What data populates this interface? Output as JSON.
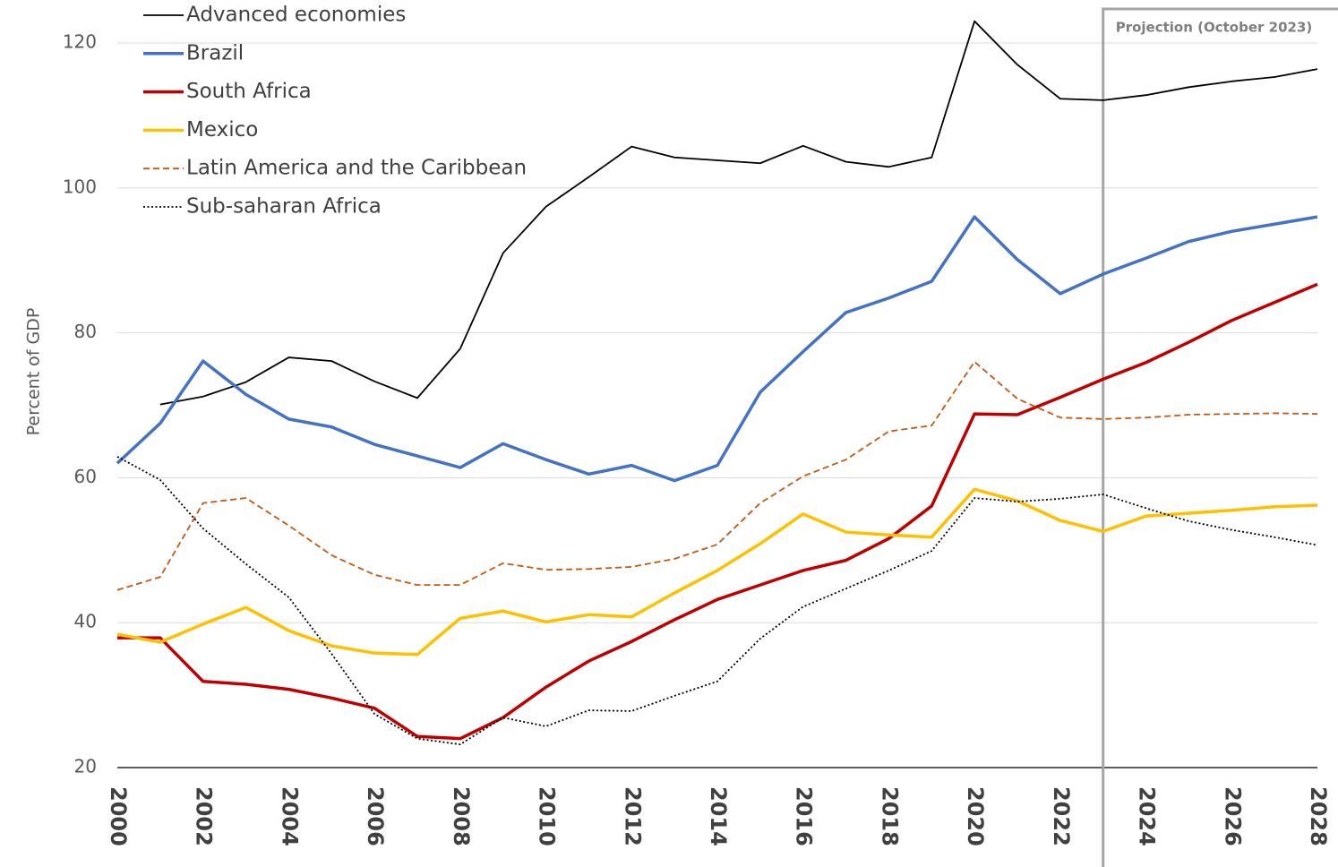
{
  "chart_data": {
    "type": "line",
    "y_label": "Percent of GDP",
    "x": [
      2000,
      2001,
      2002,
      2003,
      2004,
      2005,
      2006,
      2007,
      2008,
      2009,
      2010,
      2011,
      2012,
      2013,
      2014,
      2015,
      2016,
      2017,
      2018,
      2019,
      2020,
      2021,
      2022,
      2023,
      2024,
      2025,
      2026,
      2027,
      2028
    ],
    "xlim": [
      2000,
      2028
    ],
    "xticks": [
      2000,
      2002,
      2004,
      2006,
      2008,
      2010,
      2012,
      2014,
      2016,
      2018,
      2020,
      2022,
      2024,
      2026,
      2028
    ],
    "ylim": [
      20,
      125
    ],
    "yticks": [
      20,
      40,
      60,
      80,
      100,
      120
    ],
    "grid": true,
    "legend": "top-left",
    "projection": {
      "label": "Projection (October 2023)",
      "start": 2023
    },
    "series": [
      {
        "name": "Advanced economies",
        "color": "#000000",
        "dash": "solid",
        "width": 1.8,
        "values": [
          null,
          70.1,
          71.2,
          73.2,
          76.6,
          76.1,
          73.3,
          71.0,
          77.8,
          91.0,
          97.4,
          101.5,
          105.7,
          104.2,
          103.8,
          103.4,
          105.8,
          103.6,
          102.9,
          104.2,
          123.0,
          117.0,
          112.3,
          112.1,
          112.8,
          113.9,
          114.7,
          115.3,
          116.4
        ]
      },
      {
        "name": "Brazil",
        "color": "#4472c4",
        "dash": "solid",
        "width": 3.5,
        "values": [
          62.0,
          67.5,
          76.1,
          71.5,
          68.1,
          67.0,
          64.6,
          63.0,
          61.4,
          64.7,
          62.5,
          60.5,
          61.7,
          59.6,
          61.7,
          71.8,
          77.4,
          82.8,
          84.8,
          87.1,
          96.0,
          90.1,
          85.4,
          88.1,
          90.3,
          92.6,
          94.0,
          95.0,
          96.0
        ]
      },
      {
        "name": "South Africa",
        "color": "#c00000",
        "dash": "solid",
        "width": 3.5,
        "values": [
          37.9,
          37.9,
          31.9,
          31.5,
          30.8,
          29.6,
          28.2,
          24.3,
          24.0,
          26.9,
          31.1,
          34.7,
          37.4,
          40.4,
          43.2,
          45.2,
          47.2,
          48.6,
          51.6,
          56.1,
          68.8,
          68.7,
          71.1,
          73.6,
          75.9,
          78.7,
          81.7,
          84.2,
          86.7
        ]
      },
      {
        "name": "Mexico",
        "color": "#ffc000",
        "dash": "solid",
        "width": 3.5,
        "values": [
          38.4,
          37.3,
          39.8,
          42.1,
          38.9,
          36.8,
          35.8,
          35.6,
          40.6,
          41.6,
          40.1,
          41.1,
          40.8,
          44.1,
          47.2,
          50.9,
          55.0,
          52.5,
          52.1,
          51.8,
          58.4,
          56.8,
          54.1,
          52.6,
          54.7,
          55.1,
          55.5,
          56.0,
          56.2
        ]
      },
      {
        "name": "Latin America and the Caribbean",
        "color": "#c55a11",
        "dash": "dashed",
        "width": 1.8,
        "values": [
          44.5,
          46.3,
          56.5,
          57.2,
          53.4,
          49.3,
          46.6,
          45.2,
          45.2,
          48.2,
          47.3,
          47.4,
          47.7,
          48.8,
          50.8,
          56.5,
          60.2,
          62.5,
          66.4,
          67.2,
          76.0,
          70.9,
          68.3,
          68.1,
          68.3,
          68.7,
          68.8,
          68.9,
          68.8
        ]
      },
      {
        "name": "Sub-saharan Africa",
        "color": "#000000",
        "dash": "dotted",
        "width": 1.8,
        "values": [
          62.9,
          59.7,
          53.0,
          48.1,
          43.5,
          35.7,
          27.4,
          24.0,
          23.2,
          26.9,
          25.7,
          27.9,
          27.8,
          29.9,
          31.9,
          37.8,
          42.2,
          44.7,
          47.2,
          49.9,
          57.2,
          56.7,
          57.1,
          57.7,
          55.8,
          54.0,
          52.8,
          51.8,
          50.7
        ]
      }
    ]
  }
}
